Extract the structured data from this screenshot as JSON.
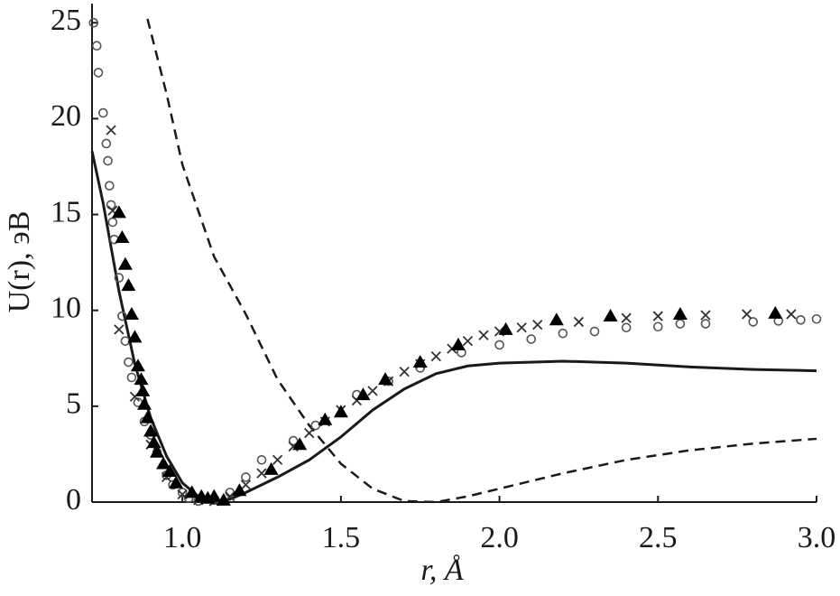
{
  "chart_data": {
    "type": "line",
    "xlabel": "r, Å",
    "ylabel": "U(r), эВ",
    "xlim": [
      0.715,
      3.0
    ],
    "ylim": [
      0,
      26
    ],
    "xticks": [
      {
        "value": 1,
        "label": "1.0"
      },
      {
        "value": 1.5,
        "label": "1.5"
      },
      {
        "value": 2,
        "label": "2.0"
      },
      {
        "value": 2.5,
        "label": "2.5"
      },
      {
        "value": 3,
        "label": "3.0"
      }
    ],
    "yticks": [
      0,
      5,
      10,
      15,
      20,
      25
    ],
    "series": [
      {
        "style": "solid",
        "color": "#1a1a1a",
        "x": [
          0.715,
          0.75,
          0.8,
          0.85,
          0.9,
          0.95,
          1.0,
          1.05,
          1.1,
          1.15,
          1.2,
          1.3,
          1.4,
          1.5,
          1.6,
          1.7,
          1.8,
          1.9,
          2.0,
          2.2,
          2.4,
          2.6,
          2.8,
          3.0
        ],
        "values": [
          18.3,
          15.6,
          11.0,
          7.2,
          4.4,
          2.4,
          1.0,
          0.3,
          0.0,
          0.15,
          0.5,
          1.3,
          2.2,
          3.4,
          4.8,
          5.9,
          6.7,
          7.1,
          7.25,
          7.35,
          7.25,
          7.05,
          6.92,
          6.85
        ]
      },
      {
        "style": "dashed",
        "color": "#1a1a1a",
        "x": [
          0.89,
          0.95,
          1.0,
          1.1,
          1.2,
          1.3,
          1.4,
          1.5,
          1.6,
          1.7,
          1.8,
          1.9,
          2.0,
          2.2,
          2.4,
          2.6,
          2.8,
          3.0
        ],
        "values": [
          25.2,
          21.3,
          17.6,
          12.8,
          9.8,
          6.4,
          4.0,
          2.0,
          0.7,
          0.05,
          0.0,
          0.3,
          0.7,
          1.5,
          2.2,
          2.7,
          3.05,
          3.3
        ]
      },
      {
        "style": "markers",
        "marker": "circle",
        "color": "#555555",
        "x": [
          0.72,
          0.73,
          0.735,
          0.75,
          0.76,
          0.765,
          0.77,
          0.775,
          0.78,
          0.785,
          0.8,
          0.81,
          0.82,
          0.83,
          0.84,
          0.86,
          0.88,
          0.9,
          0.92,
          0.95,
          0.97,
          1.0,
          1.02,
          1.05,
          1.1,
          1.15,
          1.2,
          1.25,
          1.35,
          1.42,
          1.55,
          1.65,
          1.75,
          1.88,
          2.0,
          2.1,
          2.2,
          2.3,
          2.4,
          2.5,
          2.57,
          2.65,
          2.8,
          2.88,
          2.95,
          3.0
        ],
        "values": [
          25,
          23.8,
          22.4,
          20.3,
          18.7,
          17.8,
          16.5,
          15.5,
          14.6,
          13.7,
          11.7,
          9.7,
          8.4,
          7.3,
          6.5,
          5.2,
          4.2,
          3.5,
          2.6,
          1.4,
          0.9,
          0.5,
          0.2,
          0.05,
          0.1,
          0.5,
          1.3,
          2.2,
          3.2,
          4.0,
          5.6,
          6.3,
          7.0,
          7.8,
          8.2,
          8.5,
          8.8,
          8.9,
          9.1,
          9.15,
          9.3,
          9.3,
          9.4,
          9.45,
          9.5,
          9.55
        ]
      },
      {
        "style": "markers",
        "marker": "cross",
        "color": "#333333",
        "x": [
          0.775,
          0.78,
          0.8,
          0.85,
          0.9,
          0.95,
          1.0,
          1.05,
          1.1,
          1.15,
          1.2,
          1.25,
          1.3,
          1.35,
          1.4,
          1.45,
          1.5,
          1.55,
          1.6,
          1.65,
          1.7,
          1.75,
          1.8,
          1.85,
          1.9,
          1.95,
          2.0,
          2.07,
          2.12,
          2.25,
          2.4,
          2.5,
          2.65,
          2.78,
          2.92
        ],
        "values": [
          19.4,
          15.2,
          9.0,
          5.5,
          3.0,
          1.3,
          0.4,
          0.1,
          0.05,
          0.3,
          0.9,
          1.5,
          2.2,
          2.9,
          3.6,
          4.2,
          4.8,
          5.3,
          5.8,
          6.3,
          6.8,
          7.2,
          7.6,
          8.0,
          8.4,
          8.7,
          8.9,
          9.1,
          9.25,
          9.4,
          9.6,
          9.7,
          9.75,
          9.8,
          9.8
        ]
      },
      {
        "style": "markers",
        "marker": "triangle",
        "color": "#000000",
        "x": [
          0.8,
          0.81,
          0.82,
          0.83,
          0.84,
          0.85,
          0.86,
          0.87,
          0.875,
          0.88,
          0.89,
          0.9,
          0.91,
          0.92,
          0.94,
          0.96,
          0.98,
          1.03,
          1.06,
          1.08,
          1.1,
          1.13,
          1.18,
          1.28,
          1.37,
          1.45,
          1.5,
          1.57,
          1.64,
          1.75,
          1.87,
          2.02,
          2.18,
          2.35,
          2.57,
          2.87
        ],
        "values": [
          15.1,
          13.8,
          12.4,
          11.3,
          9.8,
          8.6,
          7.1,
          6.4,
          5.8,
          5.1,
          4.4,
          3.7,
          3.1,
          2.6,
          2.0,
          1.6,
          1.0,
          0.5,
          0.3,
          0.2,
          0.3,
          0.1,
          0.6,
          1.7,
          3.0,
          4.3,
          4.7,
          5.6,
          6.4,
          7.3,
          8.2,
          9.0,
          9.5,
          9.7,
          9.8,
          9.85
        ]
      }
    ]
  }
}
